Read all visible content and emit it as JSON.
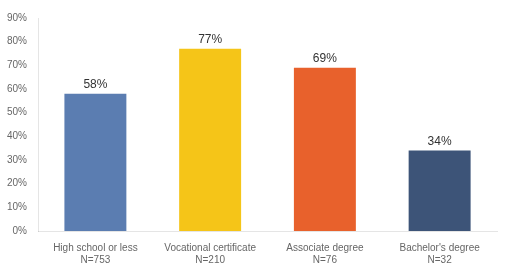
{
  "chart_data": {
    "type": "bar",
    "categories": [
      "High school or less\nN=753",
      "Vocational certificate\nN=210",
      "Associate degree\nN=76",
      "Bachelor's degree\nN=32"
    ],
    "values": [
      58,
      77,
      69,
      34
    ],
    "value_labels": [
      "58%",
      "77%",
      "69%",
      "34%"
    ],
    "colors": [
      "#5b7db1",
      "#f5c518",
      "#e8612c",
      "#3d5478"
    ],
    "ylim": [
      0,
      90
    ],
    "yticks": [
      {
        "value": 0,
        "label": "0%"
      },
      {
        "value": 10,
        "label": "10%"
      },
      {
        "value": 20,
        "label": "20%"
      },
      {
        "value": 30,
        "label": "30%"
      },
      {
        "value": 40,
        "label": "40%"
      },
      {
        "value": 50,
        "label": "50%"
      },
      {
        "value": 60,
        "label": "60%"
      },
      {
        "value": 70,
        "label": "70%"
      },
      {
        "value": 80,
        "label": "80%"
      },
      {
        "value": 90,
        "label": "90%"
      }
    ],
    "grid": false,
    "data_labels": true
  }
}
